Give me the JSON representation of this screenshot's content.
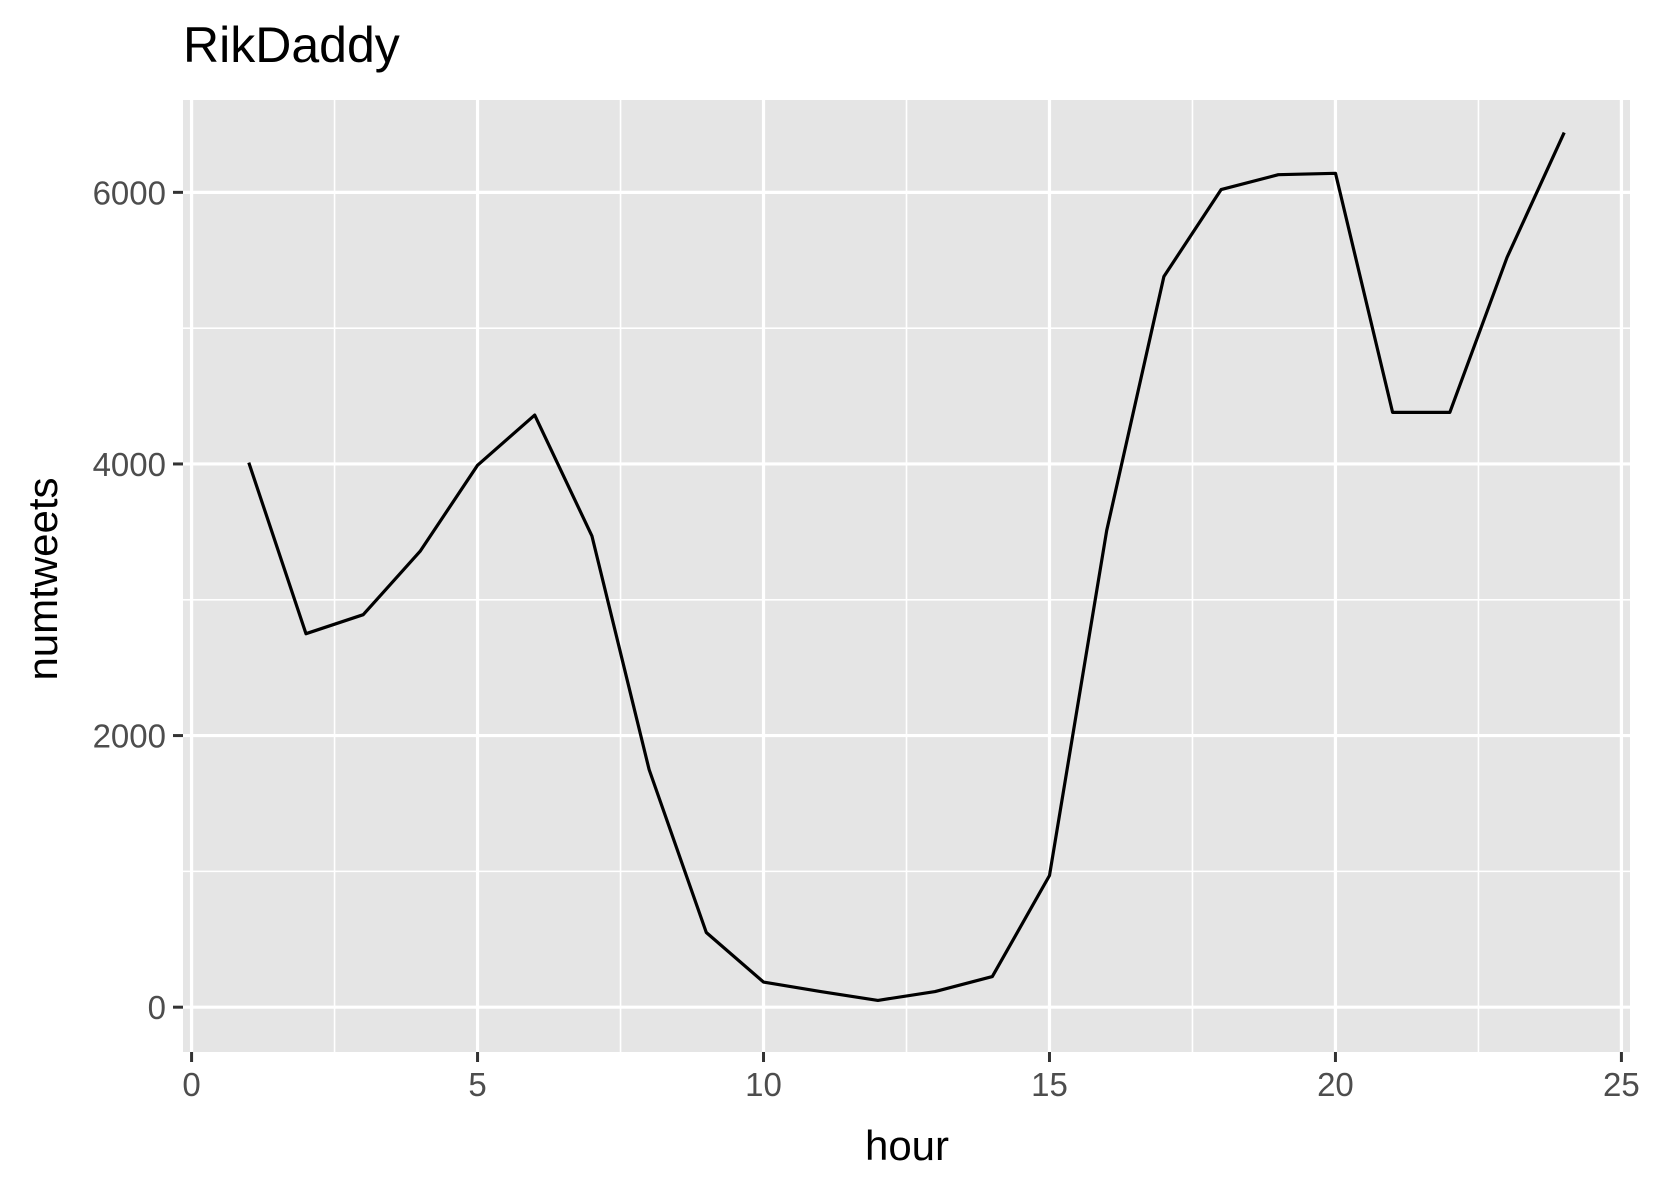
{
  "chart_data": {
    "type": "line",
    "title": "RikDaddy",
    "xlabel": "hour",
    "ylabel": "numtweets",
    "xlim": [
      -0.15,
      25.15
    ],
    "ylim": [
      -330,
      6680
    ],
    "x_ticks": [
      0,
      5,
      10,
      15,
      20,
      25
    ],
    "x_tick_labels": [
      "0",
      "5",
      "10",
      "15",
      "20",
      "25"
    ],
    "x_minor_ticks": [
      2.5,
      7.5,
      12.5,
      17.5,
      22.5
    ],
    "y_ticks": [
      0,
      2000,
      4000,
      6000
    ],
    "y_tick_labels": [
      "0",
      "2000",
      "4000",
      "6000"
    ],
    "y_minor_ticks": [
      1000,
      3000,
      5000
    ],
    "grid": true,
    "legend": "none",
    "colors": {
      "panel_background": "#e5e5e5",
      "grid_line": "#ffffff",
      "series_line": "#000000",
      "tick_mark": "#333333",
      "tick_label": "#4d4d4d",
      "axis_title": "#000000"
    },
    "series": [
      {
        "x": [
          1,
          2,
          3,
          4,
          5,
          6,
          7,
          8,
          9,
          10,
          11,
          12,
          13,
          14,
          15,
          16,
          17,
          18,
          19,
          20,
          21,
          22,
          23,
          24
        ],
        "values": [
          4010,
          2750,
          2890,
          3360,
          3990,
          4360,
          3470,
          1750,
          550,
          185,
          115,
          50,
          115,
          225,
          970,
          3510,
          5380,
          6020,
          6130,
          6140,
          4380,
          4380,
          5520,
          6440
        ]
      }
    ]
  }
}
